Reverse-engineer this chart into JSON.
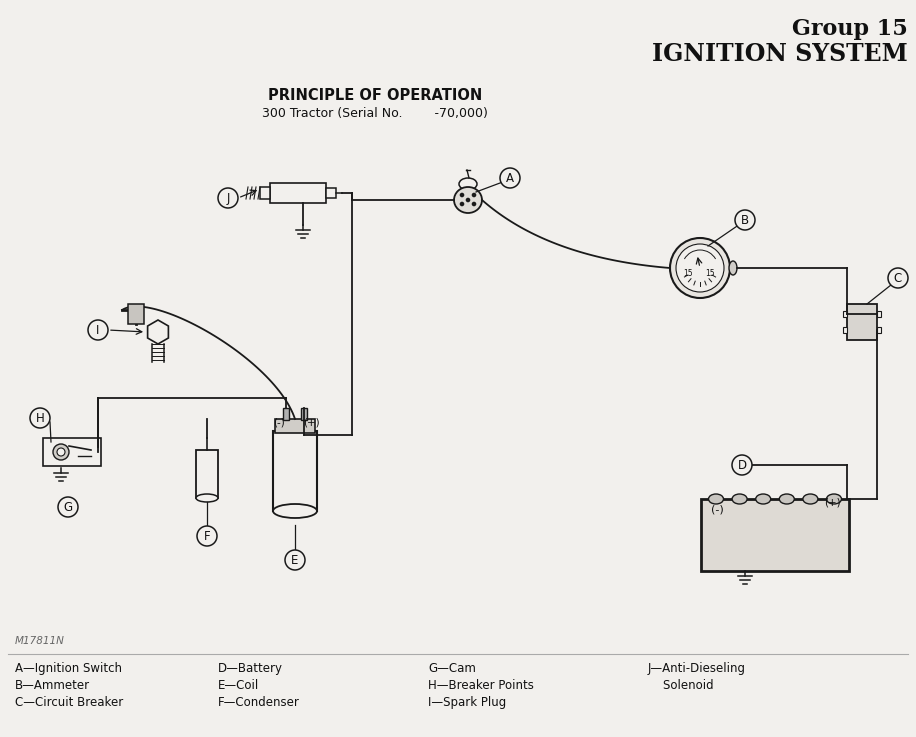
{
  "title_line1": "Group 15",
  "title_line2": "IGNITION SYSTEM",
  "subtitle_line1": "PRINCIPLE OF OPERATION",
  "subtitle_line2": "300 Tractor (Serial No.        -70,000)",
  "drawing_number": "M17811N",
  "legend": [
    [
      "A—Ignition Switch",
      "D—Battery",
      "G—Cam",
      "J—Anti-Dieseling"
    ],
    [
      "B—Ammeter",
      "E—Coil",
      "H—Breaker Points",
      "    Solenoid"
    ],
    [
      "C—Circuit Breaker",
      "F—Condenser",
      "I—Spark Plug",
      ""
    ]
  ],
  "bg_color": "#f2f0ed",
  "line_color": "#1a1a1a",
  "text_color": "#111111"
}
